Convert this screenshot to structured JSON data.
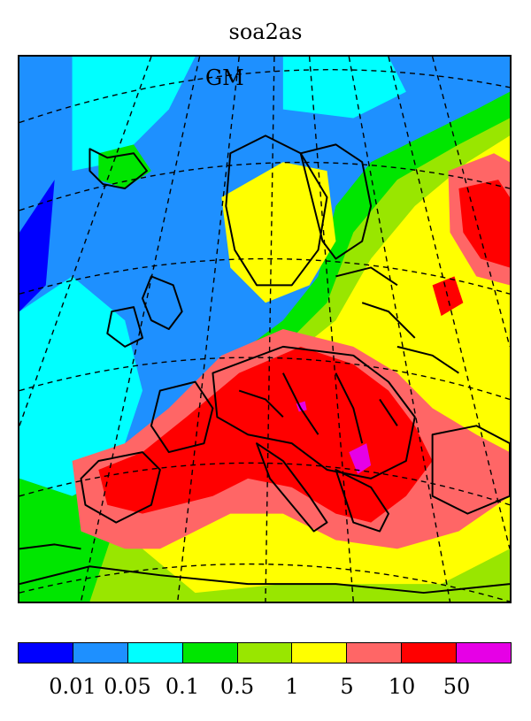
{
  "map": {
    "title": "soa2as",
    "model_label": "GM",
    "legend": {
      "colors": [
        "#0000ff",
        "#1e90ff",
        "#00ffff",
        "#00e600",
        "#99e600",
        "#ffff00",
        "#ff6666",
        "#ff0000",
        "#e600e6"
      ],
      "tick_labels": [
        "0.01",
        "0.05",
        "0.1",
        "0.5",
        "1",
        "5",
        "10",
        "50"
      ]
    }
  }
}
